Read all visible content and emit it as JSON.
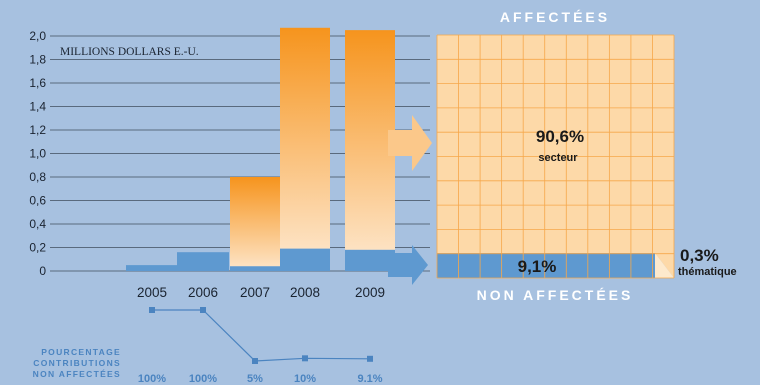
{
  "chart_data": [
    {
      "type": "bar",
      "title": "",
      "ylabel": "MILLIONS DOLLARS E.-U.",
      "categories": [
        "2005",
        "2006",
        "2007",
        "2008",
        "2009"
      ],
      "yticks": [
        "2,0",
        "1,8",
        "1,6",
        "1,4",
        "1,2",
        "1,0",
        "0,8",
        "0,6",
        "0,4",
        "0,2",
        "0"
      ],
      "ylim": [
        0,
        2.0
      ],
      "grid": true,
      "series": [
        {
          "values": [
            0.0,
            0.0,
            0.76,
            1.88,
            1.87
          ],
          "color": "#f6941d"
        },
        {
          "values": [
            0.05,
            0.16,
            0.04,
            0.19,
            0.18
          ],
          "color": "#5e99d0"
        }
      ]
    },
    {
      "type": "line",
      "caption": [
        "POURCENTAGE",
        "CONTRIBUTIONS",
        "NON AFFECTÉES"
      ],
      "categories": [
        "2005",
        "2006",
        "2007",
        "2008",
        "2009"
      ],
      "values": [
        100,
        100,
        5,
        10,
        9.1
      ],
      "labels": [
        "100%",
        "100%",
        "5%",
        "10%",
        "9.1%"
      ],
      "color": "#4b84c0"
    },
    {
      "type": "waffle",
      "top_label": "AFFECTÉES",
      "bottom_label": "NON AFFECTÉES",
      "slices": [
        {
          "value": "90,6%",
          "name": "secteur",
          "color": "#fdd9a8"
        },
        {
          "value": "9,1%",
          "name": "",
          "color": "#5e99d0"
        },
        {
          "value": "0,3%",
          "name": "thématique",
          "color": "#fdd9a8"
        }
      ]
    }
  ]
}
